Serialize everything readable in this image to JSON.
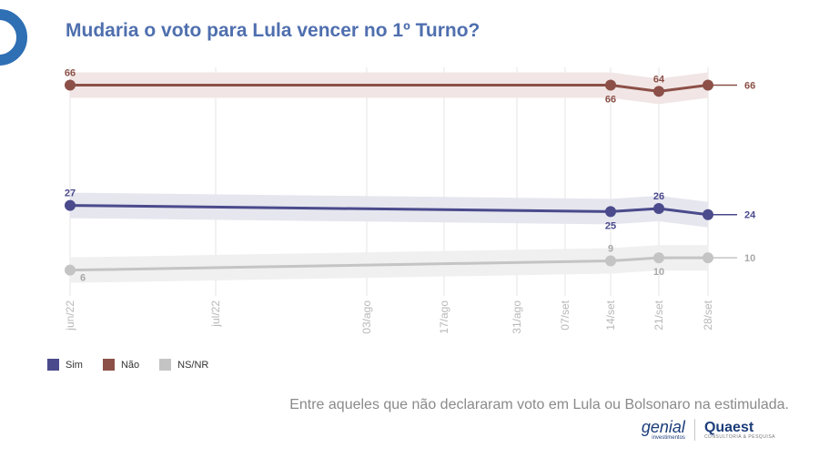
{
  "title": "Mudaria o voto para Lula vencer no 1º Turno?",
  "footnote": "Entre aqueles que não declararam voto em Lula ou Bolsonaro na estimulada.",
  "brands": {
    "genial": "genial",
    "genial_sub": "investimentos",
    "quaest": "Quaest",
    "quaest_sub": "CONSULTORIA & PESQUISA"
  },
  "chart_data": {
    "type": "line",
    "title": "Mudaria o voto para Lula vencer no 1º Turno?",
    "xlabel": "",
    "ylabel": "",
    "ylim": [
      0,
      70
    ],
    "grid": true,
    "legend_position": "bottom-left",
    "x_ticks": [
      "jun/22",
      "jul/22",
      "03/ago",
      "17/ago",
      "31/ago",
      "07/set",
      "14/set",
      "21/set",
      "28/set"
    ],
    "series": [
      {
        "name": "Sim",
        "color": "#4a4a8c",
        "band_color": "#e6e6ef",
        "points": [
          {
            "x": "jun/22",
            "y": 27
          },
          {
            "x": "14/set",
            "y": 25
          },
          {
            "x": "21/set",
            "y": 26
          },
          {
            "x": "28/set",
            "y": 24
          }
        ]
      },
      {
        "name": "Não",
        "color": "#8c5048",
        "band_color": "#f1e6e5",
        "points": [
          {
            "x": "jun/22",
            "y": 66
          },
          {
            "x": "14/set",
            "y": 66
          },
          {
            "x": "21/set",
            "y": 64
          },
          {
            "x": "28/set",
            "y": 66
          }
        ]
      },
      {
        "name": "NS/NR",
        "color": "#c4c4c4",
        "band_color": "#f0f0f0",
        "points": [
          {
            "x": "jun/22",
            "y": 6
          },
          {
            "x": "14/set",
            "y": 9
          },
          {
            "x": "21/set",
            "y": 10
          },
          {
            "x": "28/set",
            "y": 10
          }
        ]
      }
    ]
  }
}
